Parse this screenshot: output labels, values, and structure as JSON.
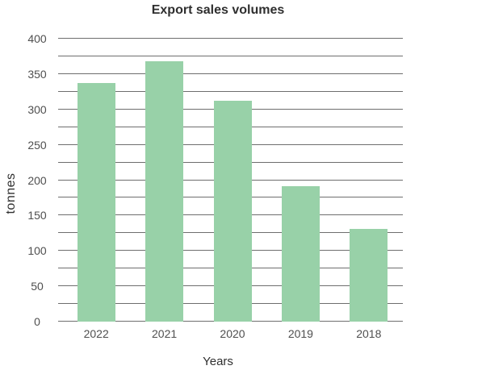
{
  "chart_data": {
    "type": "bar",
    "title": "Export sales volumes",
    "xlabel": "Years",
    "ylabel": "tonnes",
    "categories": [
      "2022",
      "2021",
      "2020",
      "2019",
      "2018"
    ],
    "values": [
      337,
      368,
      312,
      191,
      131
    ],
    "ylim": [
      0,
      400
    ],
    "ytick_label_step": 50,
    "gridline_step": 25,
    "grid": "horizontal-only",
    "legend": "none",
    "bar_color": "#98d1a8",
    "gridline_color": "#6e6e6e",
    "title_color": "#2f2f2f",
    "tick_label_color": "#4f4f4f"
  }
}
